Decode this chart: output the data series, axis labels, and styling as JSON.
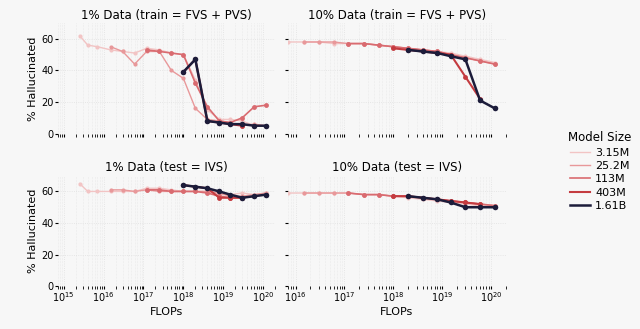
{
  "titles": [
    "1% Data (train = FVS + PVS)",
    "10% Data (train = FVS + PVS)",
    "1% Data (test = IVS)",
    "10% Data (test = IVS)"
  ],
  "ylabel": "% Hallucinated",
  "xlabel": "FLOPs",
  "model_sizes": [
    "3.15M",
    "25.2M",
    "113M",
    "403M",
    "1.61B"
  ],
  "colors": [
    "#f2c4c4",
    "#e8989a",
    "#d96b70",
    "#c43b40",
    "#1c1c3a"
  ],
  "linewidths": [
    1.0,
    1.0,
    1.2,
    1.5,
    1.8
  ],
  "markersize": [
    3.0,
    3.0,
    3.5,
    3.5,
    4.0
  ],
  "subplot_data": {
    "top_left": {
      "series": [
        {
          "model": "3.15M",
          "flops": [
            2500000000000000.0,
            4000000000000000.0,
            7000000000000000.0,
            1.5e+16,
            3e+16,
            6e+16,
            1.2e+17,
            2.5e+17,
            5e+17,
            1e+18,
            2e+18,
            4e+18,
            8e+18,
            1.5e+19,
            3e+19,
            6e+19,
            1.2e+20
          ],
          "values": [
            62,
            56,
            55,
            53,
            52,
            51,
            54,
            53,
            51,
            50,
            34,
            15,
            9,
            9,
            8,
            5,
            5
          ]
        },
        {
          "model": "25.2M",
          "flops": [
            1.5e+16,
            3e+16,
            6e+16,
            1.2e+17,
            2.5e+17,
            5e+17,
            1e+18,
            2e+18,
            4e+18,
            8e+18,
            1.5e+19,
            3e+19,
            6e+19,
            1.2e+20
          ],
          "values": [
            55,
            52,
            44,
            52,
            52,
            40,
            35,
            16,
            9,
            8,
            7,
            5,
            6,
            5
          ]
        },
        {
          "model": "113M",
          "flops": [
            1.2e+17,
            2.5e+17,
            5e+17,
            1e+18,
            2e+18,
            4e+18,
            8e+18,
            1.5e+19,
            3e+19,
            6e+19,
            1.2e+20
          ],
          "values": [
            53,
            52,
            51,
            50,
            32,
            17,
            8,
            7,
            10,
            17,
            18
          ]
        },
        {
          "model": "403M",
          "flops": [
            1e+18,
            2e+18,
            4e+18,
            8e+18,
            1.5e+19,
            3e+19
          ],
          "values": [
            39,
            47,
            8,
            7,
            6,
            5
          ]
        },
        {
          "model": "1.61B",
          "flops": [
            1e+18,
            2e+18,
            4e+18,
            8e+18,
            1.5e+19,
            3e+19,
            6e+19,
            1.2e+20
          ],
          "values": [
            39,
            47,
            8,
            7,
            6,
            6,
            5,
            5
          ]
        }
      ]
    },
    "top_right": {
      "series": [
        {
          "model": "3.15M",
          "flops": [
            2500000000000000.0,
            4000000000000000.0,
            7000000000000000.0,
            1.5e+16,
            3e+16,
            6e+16,
            1.2e+17,
            2.5e+17,
            5e+17,
            1e+18,
            2e+18,
            4e+18,
            8e+18,
            1.5e+19,
            3e+19,
            6e+19,
            1.2e+20
          ],
          "values": [
            58,
            58,
            58,
            58,
            58,
            57,
            57,
            57,
            56,
            55,
            54,
            53,
            52,
            51,
            49,
            47,
            45
          ]
        },
        {
          "model": "25.2M",
          "flops": [
            1.5e+16,
            3e+16,
            6e+16,
            1.2e+17,
            2.5e+17,
            5e+17,
            1e+18,
            2e+18,
            4e+18,
            8e+18,
            1.5e+19,
            3e+19,
            6e+19,
            1.2e+20
          ],
          "values": [
            58,
            58,
            58,
            57,
            57,
            56,
            55,
            54,
            53,
            52,
            50,
            48,
            46,
            44
          ]
        },
        {
          "model": "113M",
          "flops": [
            1.2e+17,
            2.5e+17,
            5e+17,
            1e+18,
            2e+18,
            4e+18,
            8e+18,
            1.5e+19,
            3e+19,
            6e+19,
            1.2e+20
          ],
          "values": [
            57,
            57,
            56,
            55,
            54,
            53,
            52,
            50,
            48,
            46,
            44
          ]
        },
        {
          "model": "403M",
          "flops": [
            1e+18,
            2e+18,
            4e+18,
            8e+18,
            1.5e+19,
            3e+19,
            6e+19
          ],
          "values": [
            54,
            53,
            52,
            51,
            50,
            36,
            22
          ]
        },
        {
          "model": "1.61B",
          "flops": [
            2e+18,
            4e+18,
            8e+18,
            1.5e+19,
            3e+19,
            6e+19,
            1.2e+20
          ],
          "values": [
            53,
            52,
            51,
            49,
            47,
            21,
            16
          ]
        }
      ]
    },
    "bottom_left": {
      "series": [
        {
          "model": "3.15M",
          "flops": [
            2500000000000000.0,
            4000000000000000.0,
            7000000000000000.0,
            1.5e+16,
            3e+16,
            6e+16,
            1.2e+17,
            2.5e+17,
            5e+17,
            1e+18,
            2e+18,
            4e+18,
            8e+18,
            1.5e+19,
            3e+19,
            6e+19,
            1.2e+20
          ],
          "values": [
            65,
            60,
            60,
            60,
            60,
            60,
            62,
            62,
            61,
            60,
            60,
            60,
            58,
            58,
            59,
            58,
            59
          ]
        },
        {
          "model": "25.2M",
          "flops": [
            1.5e+16,
            3e+16,
            6e+16,
            1.2e+17,
            2.5e+17,
            5e+17,
            1e+18,
            2e+18,
            4e+18,
            8e+18,
            1.5e+19,
            3e+19,
            6e+19,
            1.2e+20
          ],
          "values": [
            61,
            61,
            60,
            61,
            60,
            60,
            60,
            60,
            60,
            59,
            57,
            57,
            58,
            59
          ]
        },
        {
          "model": "113M",
          "flops": [
            1.2e+17,
            2.5e+17,
            5e+17,
            1e+18,
            2e+18,
            4e+18,
            8e+18,
            1.5e+19,
            3e+19,
            6e+19,
            1.2e+20
          ],
          "values": [
            61,
            61,
            60,
            60,
            60,
            59,
            57,
            56,
            56,
            57,
            58
          ]
        },
        {
          "model": "403M",
          "flops": [
            1e+18,
            2e+18,
            4e+18,
            8e+18,
            1.5e+19,
            3e+19
          ],
          "values": [
            64,
            63,
            62,
            56,
            56,
            56
          ]
        },
        {
          "model": "1.61B",
          "flops": [
            1e+18,
            2e+18,
            4e+18,
            8e+18,
            1.5e+19,
            3e+19,
            6e+19,
            1.2e+20
          ],
          "values": [
            64,
            63,
            62,
            60,
            58,
            56,
            57,
            58
          ]
        }
      ]
    },
    "bottom_right": {
      "series": [
        {
          "model": "3.15M",
          "flops": [
            2500000000000000.0,
            4000000000000000.0,
            7000000000000000.0,
            1.5e+16,
            3e+16,
            6e+16,
            1.2e+17,
            2.5e+17,
            5e+17,
            1e+18,
            2e+18,
            4e+18,
            8e+18,
            1.5e+19,
            3e+19,
            6e+19,
            1.2e+20
          ],
          "values": [
            59,
            59,
            59,
            59,
            59,
            59,
            59,
            58,
            58,
            57,
            56,
            55,
            54,
            53,
            52,
            51,
            50
          ]
        },
        {
          "model": "25.2M",
          "flops": [
            1.5e+16,
            3e+16,
            6e+16,
            1.2e+17,
            2.5e+17,
            5e+17,
            1e+18,
            2e+18,
            4e+18,
            8e+18,
            1.5e+19,
            3e+19,
            6e+19,
            1.2e+20
          ],
          "values": [
            59,
            59,
            59,
            59,
            58,
            58,
            57,
            57,
            56,
            55,
            54,
            53,
            52,
            51
          ]
        },
        {
          "model": "113M",
          "flops": [
            1.2e+17,
            2.5e+17,
            5e+17,
            1e+18,
            2e+18,
            4e+18,
            8e+18,
            1.5e+19,
            3e+19,
            6e+19,
            1.2e+20
          ],
          "values": [
            59,
            58,
            58,
            57,
            57,
            56,
            55,
            54,
            53,
            52,
            51
          ]
        },
        {
          "model": "403M",
          "flops": [
            1e+18,
            2e+18,
            4e+18,
            8e+18,
            1.5e+19,
            3e+19,
            6e+19
          ],
          "values": [
            57,
            57,
            56,
            55,
            54,
            53,
            52
          ]
        },
        {
          "model": "1.61B",
          "flops": [
            2e+18,
            4e+18,
            8e+18,
            1.5e+19,
            3e+19,
            6e+19,
            1.2e+20
          ],
          "values": [
            57,
            56,
            55,
            53,
            50,
            50,
            50
          ]
        }
      ]
    }
  },
  "ylim": [
    0,
    70
  ],
  "xlim_left": [
    700000000000000.0,
    2e+20
  ],
  "xlim_right": [
    7000000000000000.0,
    2e+20
  ],
  "yticks": [
    0,
    20,
    40,
    60
  ],
  "background_color": "#f7f7f7",
  "grid_color": "#e0e0e0",
  "title_fontsize": 8.5,
  "label_fontsize": 8,
  "tick_fontsize": 7,
  "legend_title_fontsize": 8.5,
  "legend_fontsize": 8
}
